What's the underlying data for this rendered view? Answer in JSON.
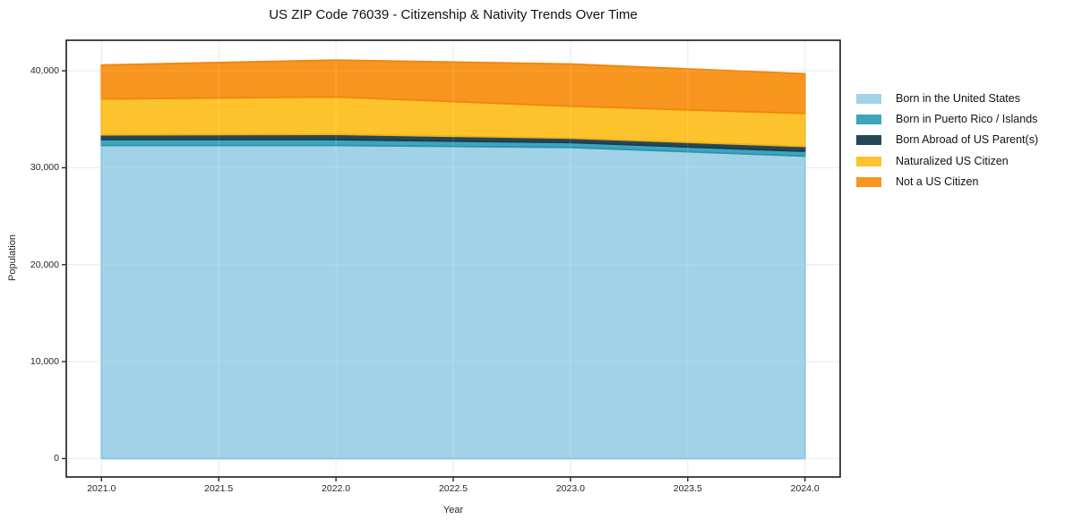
{
  "chart_data": {
    "type": "area",
    "stacked": true,
    "title": "US ZIP Code 76039 - Citizenship & Nativity Trends Over Time",
    "xlabel": "Year",
    "ylabel": "Population",
    "x": [
      2021,
      2022,
      2023,
      2024
    ],
    "series": [
      {
        "name": "Born in the United States",
        "values": [
          32300,
          32300,
          32100,
          31200
        ],
        "fill": "#a2d2e7",
        "edge": "#7fc2e0"
      },
      {
        "name": "Born in Puerto Rico / Islands",
        "values": [
          600,
          600,
          500,
          500
        ],
        "fill": "#3da5bc",
        "edge": "#2b94ae"
      },
      {
        "name": "Born Abroad of US Parent(s)",
        "values": [
          500,
          550,
          450,
          500
        ],
        "fill": "#24485a",
        "edge": "#1c3c4e"
      },
      {
        "name": "Naturalized US Citizen",
        "values": [
          3700,
          3850,
          3300,
          3400
        ],
        "fill": "#fdc32c",
        "edge": "#f6b011"
      },
      {
        "name": "Not a US Citizen",
        "values": [
          3500,
          3800,
          4350,
          4100
        ],
        "fill": "#f8951f",
        "edge": "#ef860d"
      }
    ],
    "stack_totals": [
      40600,
      41100,
      40700,
      39700
    ],
    "xlim": [
      2020.85,
      2024.15
    ],
    "ylim": [
      -1900,
      43150
    ],
    "x_ticks": [
      {
        "value": 2021.0,
        "label": "2021.0"
      },
      {
        "value": 2021.5,
        "label": "2021.5"
      },
      {
        "value": 2022.0,
        "label": "2022.0"
      },
      {
        "value": 2022.5,
        "label": "2022.5"
      },
      {
        "value": 2023.0,
        "label": "2023.0"
      },
      {
        "value": 2023.5,
        "label": "2023.5"
      },
      {
        "value": 2024.0,
        "label": "2024.0"
      }
    ],
    "y_ticks": [
      {
        "value": 0,
        "label": "0"
      },
      {
        "value": 10000,
        "label": "10,000"
      },
      {
        "value": 20000,
        "label": "20,000"
      },
      {
        "value": 30000,
        "label": "30,000"
      },
      {
        "value": 40000,
        "label": "40,000"
      }
    ],
    "grid": true,
    "legend_position": "right",
    "colors": {
      "gridline": "#e7e7e7",
      "spine": "#1a1a1a",
      "tick": "#1a1a1a",
      "background": "#ffffff"
    }
  }
}
